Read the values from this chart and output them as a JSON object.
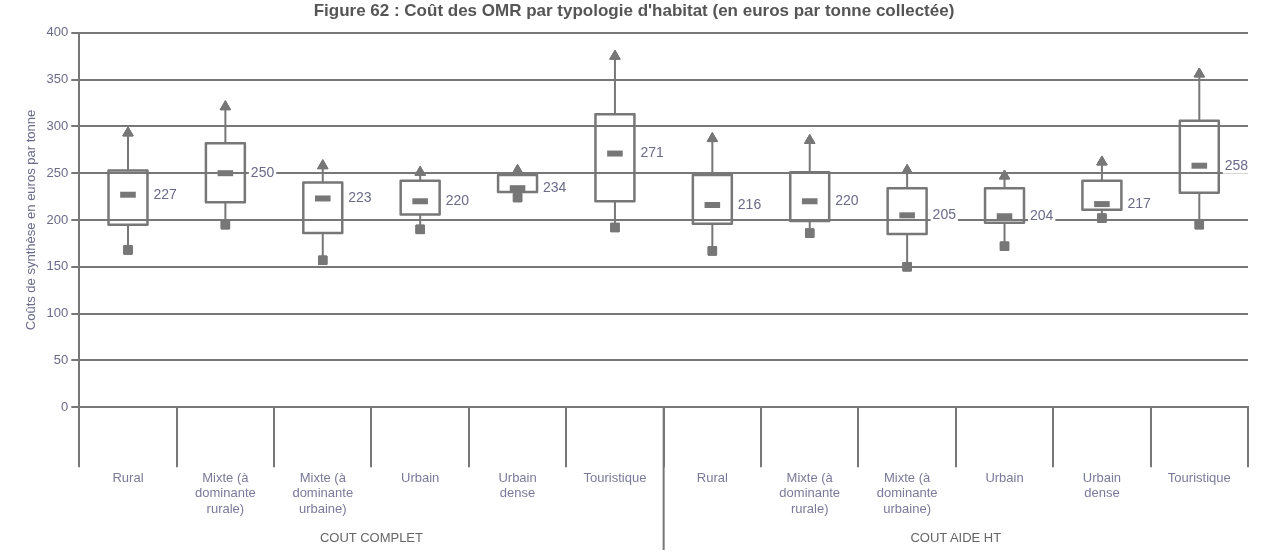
{
  "chart_data": {
    "type": "box",
    "title": "Figure 62 : Coût des OMR par typologie d'habitat (en euros par tonne collectée)",
    "ylabel": "Coûts de synthèse en euros par tonne",
    "categories": [
      "Rural",
      "Mixte (à dominante rurale)",
      "Mixte (à dominante urbaine)",
      "Urbain",
      "Urbain dense",
      "Touristique",
      "Rural",
      "Mixte (à dominante rurale)",
      "Mixte (à dominante urbaine)",
      "Urbain",
      "Urbain dense",
      "Touristique"
    ],
    "series": [
      {
        "type": "scatter",
        "marker": "triangle",
        "color": "#777777",
        "values": [
          293,
          321,
          258,
          251,
          253,
          375,
          287,
          285,
          253,
          247,
          262,
          356
        ]
      },
      {
        "type": "scatter",
        "marker": "square",
        "color": "#777777",
        "values": [
          168,
          195,
          157,
          190,
          224,
          192,
          167,
          186,
          150,
          172,
          202,
          195
        ]
      },
      {
        "type": "box",
        "color": "#777777",
        "value_labels": [
          "227",
          "250",
          "223",
          "220",
          "234",
          "271",
          "216",
          "220",
          "205",
          "204",
          "217",
          "258"
        ],
        "boxes": [
          {
            "low": 168,
            "q1": 195,
            "median": 227,
            "q3": 253,
            "high": 293
          },
          {
            "low": 195,
            "q1": 219,
            "median": 250,
            "q3": 282,
            "high": 321
          },
          {
            "low": 157,
            "q1": 186,
            "median": 223,
            "q3": 240,
            "high": 258
          },
          {
            "low": 190,
            "q1": 206,
            "median": 220,
            "q3": 242,
            "high": 251
          },
          {
            "low": 224,
            "q1": 230,
            "median": 234,
            "q3": 248,
            "high": 253
          },
          {
            "low": 192,
            "q1": 220,
            "median": 271,
            "q3": 313,
            "high": 375
          },
          {
            "low": 167,
            "q1": 196,
            "median": 216,
            "q3": 248,
            "high": 287
          },
          {
            "low": 186,
            "q1": 199,
            "median": 220,
            "q3": 251,
            "high": 285
          },
          {
            "low": 150,
            "q1": 185,
            "median": 205,
            "q3": 234,
            "high": 253
          },
          {
            "low": 172,
            "q1": 197,
            "median": 204,
            "q3": 234,
            "high": 247
          },
          {
            "low": 202,
            "q1": 211,
            "median": 217,
            "q3": 242,
            "high": 262
          },
          {
            "low": 195,
            "q1": 229,
            "median": 258,
            "q3": 306,
            "high": 356
          }
        ]
      }
    ],
    "ylim": [
      0,
      400
    ],
    "yticks": [
      0,
      50,
      100,
      150,
      200,
      250,
      300,
      350,
      400
    ],
    "grid": "y",
    "legend": false,
    "annotations": [
      "COUT COMPLET",
      "COUT AIDE HT"
    ]
  }
}
